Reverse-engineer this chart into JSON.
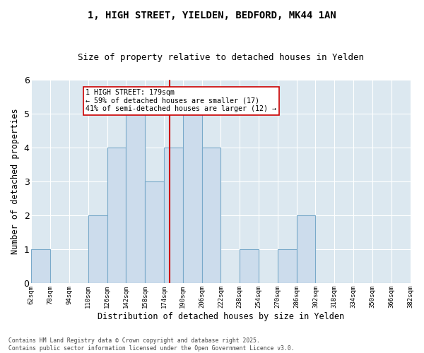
{
  "title": "1, HIGH STREET, YIELDEN, BEDFORD, MK44 1AN",
  "subtitle": "Size of property relative to detached houses in Yelden",
  "xlabel": "Distribution of detached houses by size in Yelden",
  "ylabel": "Number of detached properties",
  "bin_edges": [
    62,
    78,
    94,
    110,
    126,
    142,
    158,
    174,
    190,
    206,
    222,
    238,
    254,
    270,
    286,
    302,
    318,
    334,
    350,
    366,
    382
  ],
  "bin_labels": [
    "62sqm",
    "78sqm",
    "94sqm",
    "110sqm",
    "126sqm",
    "142sqm",
    "158sqm",
    "174sqm",
    "190sqm",
    "206sqm",
    "222sqm",
    "238sqm",
    "254sqm",
    "270sqm",
    "286sqm",
    "302sqm",
    "318sqm",
    "334sqm",
    "350sqm",
    "366sqm",
    "382sqm"
  ],
  "counts": [
    1,
    0,
    0,
    2,
    4,
    5,
    3,
    4,
    5,
    4,
    0,
    1,
    0,
    1,
    2,
    0,
    0,
    0,
    0,
    0
  ],
  "bar_color": "#ccdcec",
  "bar_edge_color": "#7aaaca",
  "subject_value": 179,
  "vline_color": "#cc0000",
  "annotation_text": "1 HIGH STREET: 179sqm\n← 59% of detached houses are smaller (17)\n41% of semi-detached houses are larger (12) →",
  "annotation_box_color": "#ffffff",
  "annotation_box_edge": "#cc0000",
  "ylim": [
    0,
    6
  ],
  "yticks": [
    0,
    1,
    2,
    3,
    4,
    5,
    6
  ],
  "fig_bg_color": "#ffffff",
  "plot_bg_color": "#dce8f0",
  "grid_color": "#ffffff",
  "footer_line1": "Contains HM Land Registry data © Crown copyright and database right 2025.",
  "footer_line2": "Contains public sector information licensed under the Open Government Licence v3.0."
}
